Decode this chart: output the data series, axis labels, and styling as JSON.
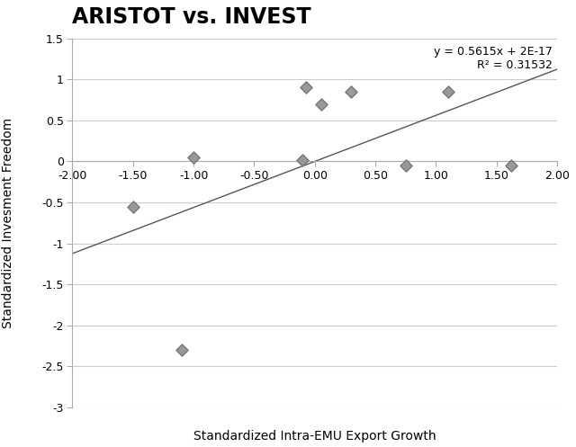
{
  "title": "ARISTOT vs. INVEST",
  "xlabel": "Standardized Intra-EMU Export Growth",
  "ylabel": "Standardized Invesment Freedom",
  "equation_text": "y = 0.5615x + 2E-17",
  "r2_text": "R² = 0.31532",
  "scatter_x": [
    -1.5,
    -1.0,
    -0.1,
    -0.07,
    0.05,
    0.3,
    0.75,
    1.1,
    1.62,
    -1.1
  ],
  "scatter_y": [
    -0.55,
    0.05,
    0.02,
    0.9,
    0.7,
    0.85,
    -0.05,
    0.85,
    -0.05,
    -2.3
  ],
  "slope": 0.5615,
  "intercept": 0.0,
  "xlim": [
    -2.0,
    2.0
  ],
  "ylim": [
    -3.0,
    1.5
  ],
  "xticks": [
    -2.0,
    -1.5,
    -1.0,
    -0.5,
    0.0,
    0.5,
    1.0,
    1.5,
    2.0
  ],
  "yticks": [
    -3.0,
    -2.5,
    -2.0,
    -1.5,
    -1.0,
    -0.5,
    0.0,
    0.5,
    1.0,
    1.5
  ],
  "marker_color": "#999999",
  "marker_edge_color": "#777777",
  "line_color": "#555555",
  "bg_color": "#ffffff",
  "grid_color": "#cccccc",
  "title_fontsize": 17,
  "label_fontsize": 10,
  "tick_fontsize": 9,
  "annotation_fontsize": 9
}
